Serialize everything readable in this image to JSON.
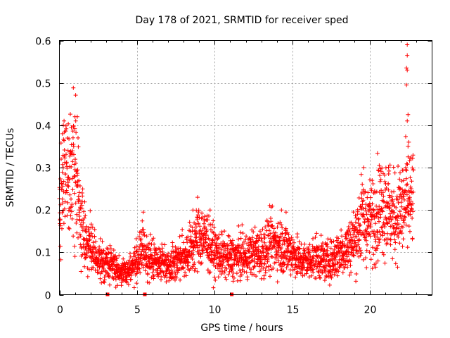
{
  "chart_data": {
    "type": "scatter",
    "title": "Day 178 of 2021, SRMTID for receiver sped",
    "xlabel": "GPS time / hours",
    "ylabel": "SRMTID / TECUs",
    "xlim": [
      0,
      24
    ],
    "ylim": [
      0,
      0.6
    ],
    "xticks": [
      0,
      5,
      10,
      15,
      20
    ],
    "xtick_labels": [
      "0",
      "5",
      "10",
      "15",
      "20"
    ],
    "yticks": [
      0,
      0.1,
      0.2,
      0.3,
      0.4,
      0.5,
      0.6
    ],
    "ytick_labels": [
      "0",
      "0.1",
      "0.2",
      "0.3",
      "0.4",
      "0.5",
      "0.6"
    ],
    "grid": true,
    "marker": "+",
    "color": "#ff0000",
    "gap_markers_x": [
      3.1,
      5.5,
      11.1
    ],
    "trend": [
      [
        0.0,
        0.21
      ],
      [
        0.3,
        0.27
      ],
      [
        0.6,
        0.27
      ],
      [
        0.9,
        0.3
      ],
      [
        1.1,
        0.27
      ],
      [
        1.3,
        0.19
      ],
      [
        1.6,
        0.14
      ],
      [
        2.0,
        0.11
      ],
      [
        2.4,
        0.08
      ],
      [
        3.0,
        0.075
      ],
      [
        3.5,
        0.07
      ],
      [
        4.0,
        0.05
      ],
      [
        4.5,
        0.06
      ],
      [
        5.0,
        0.08
      ],
      [
        5.4,
        0.11
      ],
      [
        5.8,
        0.08
      ],
      [
        6.5,
        0.08
      ],
      [
        7.0,
        0.07
      ],
      [
        7.5,
        0.08
      ],
      [
        8.0,
        0.09
      ],
      [
        8.5,
        0.11
      ],
      [
        9.0,
        0.14
      ],
      [
        9.5,
        0.13
      ],
      [
        10.0,
        0.1
      ],
      [
        10.5,
        0.09
      ],
      [
        11.0,
        0.085
      ],
      [
        11.5,
        0.09
      ],
      [
        12.0,
        0.09
      ],
      [
        12.5,
        0.1
      ],
      [
        13.0,
        0.1
      ],
      [
        13.5,
        0.12
      ],
      [
        14.0,
        0.12
      ],
      [
        14.5,
        0.11
      ],
      [
        15.0,
        0.1
      ],
      [
        15.5,
        0.08
      ],
      [
        16.0,
        0.08
      ],
      [
        16.5,
        0.09
      ],
      [
        17.0,
        0.08
      ],
      [
        17.5,
        0.08
      ],
      [
        18.0,
        0.1
      ],
      [
        18.5,
        0.11
      ],
      [
        19.0,
        0.13
      ],
      [
        19.5,
        0.18
      ],
      [
        20.0,
        0.17
      ],
      [
        20.5,
        0.2
      ],
      [
        21.0,
        0.22
      ],
      [
        21.5,
        0.18
      ],
      [
        22.0,
        0.2
      ],
      [
        22.5,
        0.22
      ],
      [
        22.8,
        0.22
      ]
    ],
    "outliers": [
      [
        22.4,
        0.59
      ],
      [
        22.4,
        0.565
      ],
      [
        22.35,
        0.535
      ],
      [
        22.4,
        0.53
      ],
      [
        22.35,
        0.495
      ],
      [
        22.45,
        0.425
      ],
      [
        22.4,
        0.41
      ],
      [
        22.5,
        0.36
      ],
      [
        22.45,
        0.35
      ],
      [
        22.3,
        0.3
      ],
      [
        0.3,
        0.41
      ],
      [
        0.25,
        0.4
      ],
      [
        1.0,
        0.42
      ],
      [
        1.15,
        0.42
      ],
      [
        1.05,
        0.41
      ],
      [
        0.2,
        0.38
      ],
      [
        0.9,
        0.355
      ],
      [
        1.2,
        0.37
      ],
      [
        8.9,
        0.23
      ],
      [
        8.6,
        0.2
      ],
      [
        14.3,
        0.2
      ],
      [
        14.6,
        0.195
      ],
      [
        5.4,
        0.195
      ],
      [
        20.6,
        0.305
      ],
      [
        21.2,
        0.285
      ],
      [
        19.6,
        0.3
      ]
    ],
    "n_points": 2600
  }
}
